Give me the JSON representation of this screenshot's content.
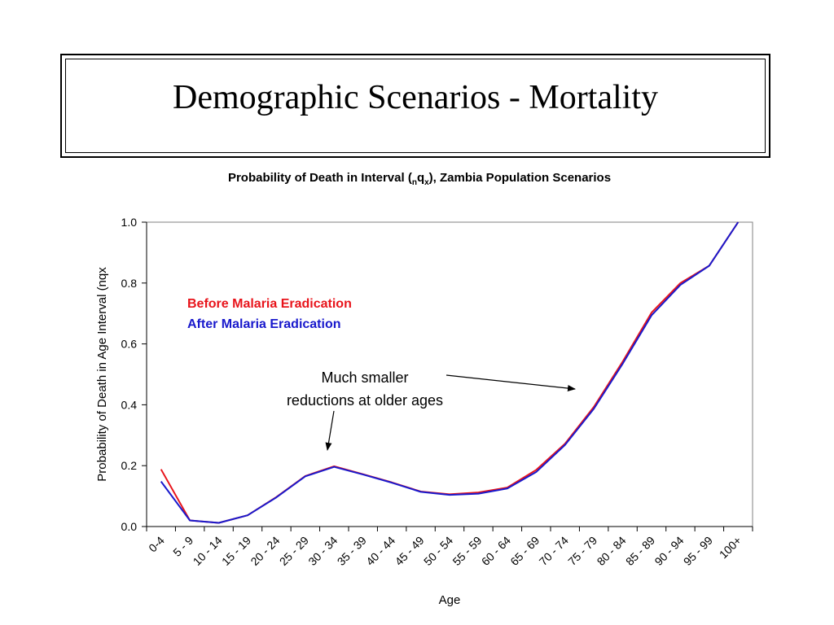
{
  "slide": {
    "title": "Demographic Scenarios - Mortality"
  },
  "chart_header": {
    "main": "Probability of Death in Interval (",
    "sub_left": "n",
    "q": "q",
    "sub_right": "x",
    "rest": "), Zambia Population Scenarios"
  },
  "chart_data": {
    "type": "line",
    "title": "Probability of Death in Interval (nqx), Zambia Population Scenarios",
    "xlabel": "Age",
    "ylabel": "Probability of Death in Age Interval (nqx",
    "ylim": [
      0,
      1.0
    ],
    "yticks": [
      "0.0",
      "0.2",
      "0.4",
      "0.6",
      "0.8",
      "1.0"
    ],
    "categories": [
      "0-4",
      "5 - 9",
      "10 - 14",
      "15 - 19",
      "20 - 24",
      "25 - 29",
      "30 - 34",
      "35 - 39",
      "40 - 44",
      "45 - 49",
      "50 - 54",
      "55 - 59",
      "60 - 64",
      "65 - 69",
      "70 - 74",
      "75 - 79",
      "80 - 84",
      "85 - 89",
      "90 - 94",
      "95 - 99",
      "100+"
    ],
    "legend_position": "top-left",
    "grid": false,
    "series": [
      {
        "name": "Before Malaria Eradication",
        "color": "#e8141b",
        "values": [
          0.188,
          0.02,
          0.012,
          0.037,
          0.097,
          0.166,
          0.198,
          0.172,
          0.145,
          0.115,
          0.106,
          0.112,
          0.128,
          0.186,
          0.272,
          0.393,
          0.542,
          0.703,
          0.8,
          0.857,
          1.0
        ]
      },
      {
        "name": "After Malaria Eradication",
        "color": "#1919cc",
        "values": [
          0.148,
          0.02,
          0.012,
          0.037,
          0.096,
          0.165,
          0.196,
          0.171,
          0.144,
          0.114,
          0.104,
          0.108,
          0.125,
          0.179,
          0.268,
          0.387,
          0.535,
          0.694,
          0.794,
          0.857,
          1.0
        ]
      }
    ],
    "annotation": {
      "line1": "Much smaller",
      "line2": "reductions at older ages"
    }
  }
}
